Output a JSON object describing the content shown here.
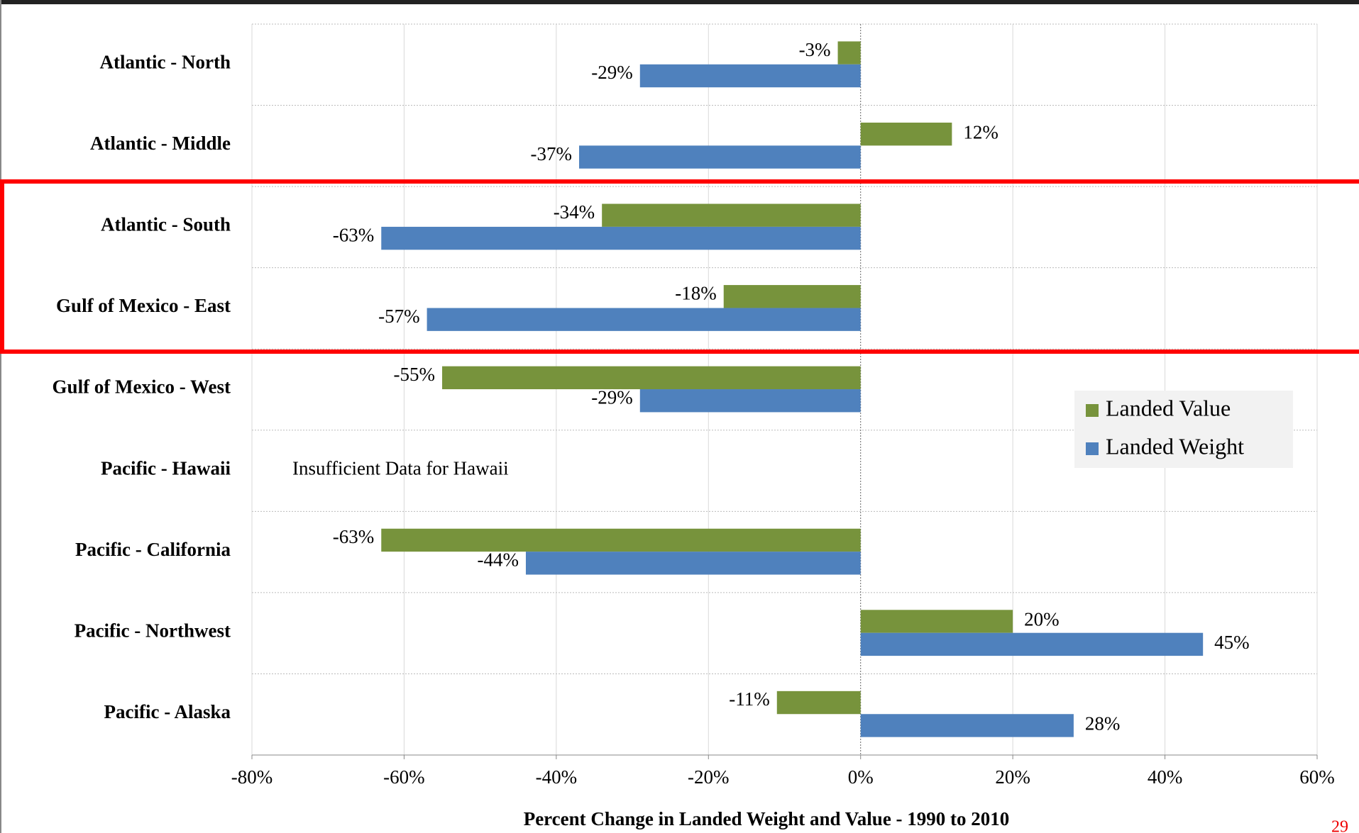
{
  "chart_data": {
    "type": "bar",
    "orientation": "horizontal",
    "x_label": "Percent Change in Landed Weight and Value - 1990 to  2010",
    "annotation": "Insufficient Data for Hawaii",
    "categories": [
      "Atlantic - North",
      "Atlantic - Middle",
      "Atlantic - South",
      "Gulf of Mexico - East",
      "Gulf of Mexico - West",
      "Pacific - Hawaii",
      "Pacific - California",
      "Pacific - Northwest",
      "Pacific - Alaska"
    ],
    "series": [
      {
        "name": "Landed Value",
        "color": "#77933c",
        "values": [
          -3,
          12,
          -34,
          -18,
          -55,
          null,
          -63,
          20,
          -11
        ],
        "value_labels": [
          "-3%",
          "12%",
          "-34%",
          "-18%",
          "-55%",
          null,
          "-63%",
          "20%",
          "-11%"
        ]
      },
      {
        "name": "Landed Weight",
        "color": "#4f81bd",
        "values": [
          -29,
          -37,
          -63,
          -57,
          -29,
          null,
          -44,
          45,
          28
        ],
        "value_labels": [
          "-29%",
          "-37%",
          "-63%",
          "-57%",
          "-29%",
          null,
          "-44%",
          "45%",
          "28%"
        ]
      }
    ],
    "xlim": [
      -80,
      60
    ],
    "xticks": [
      {
        "value": -80,
        "label": "-80%"
      },
      {
        "value": -60,
        "label": "-60%"
      },
      {
        "value": -40,
        "label": "-40%"
      },
      {
        "value": -20,
        "label": "-20%"
      },
      {
        "value": 0,
        "label": "0%"
      },
      {
        "value": 20,
        "label": "20%"
      },
      {
        "value": 40,
        "label": "40%"
      },
      {
        "value": 60,
        "label": "60%"
      }
    ],
    "grid": true,
    "legend": "right"
  },
  "page_number": "29"
}
